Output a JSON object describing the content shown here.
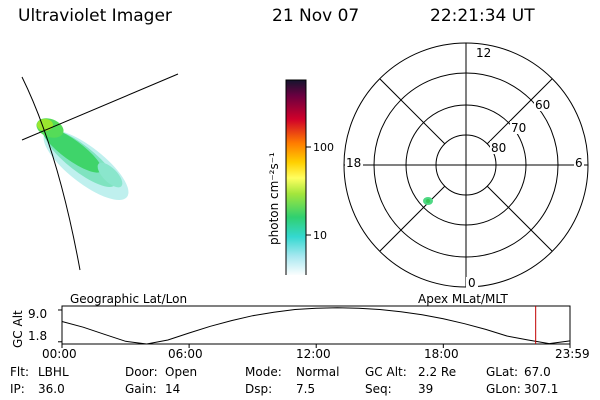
{
  "header": {
    "instrument": "Ultraviolet Imager",
    "date": "21 Nov 07",
    "time": "22:21:34 UT"
  },
  "colorbar": {
    "label": "photon cm⁻²s⁻¹",
    "ticks": [
      "100",
      "10"
    ]
  },
  "polar_plot": {
    "mlt_labels": {
      "top": "12",
      "bottom": "0",
      "left": "18",
      "right": "6"
    },
    "lat_labels": [
      "60",
      "70",
      "80"
    ]
  },
  "timeline": {
    "left_title": "Geographic Lat/Lon",
    "right_title": "Apex MLat/MLT",
    "y_axis_label": "GC Alt",
    "y_ticks": [
      "9.0",
      "1.8"
    ],
    "x_ticks": [
      "00:00",
      "06:00",
      "12:00",
      "18:00",
      "23:59"
    ]
  },
  "footer": {
    "rows": [
      [
        {
          "key": "Flt:",
          "value": "LBHL"
        },
        {
          "key": "Door:",
          "value": "Open"
        },
        {
          "key": "Mode:",
          "value": "Normal"
        },
        {
          "key": "GC Alt:",
          "value": "2.2 Re"
        },
        {
          "key": "GLat:",
          "value": "67.0"
        }
      ],
      [
        {
          "key": "IP:",
          "value": "36.0"
        },
        {
          "key": "Gain:",
          "value": "14"
        },
        {
          "key": "Dsp:",
          "value": "7.5"
        },
        {
          "key": "Seq:",
          "value": "39"
        },
        {
          "key": "GLon:",
          "value": "307.1"
        }
      ]
    ]
  },
  "chart_data": {
    "type": "line",
    "x_range_hours": [
      0,
      23.98
    ],
    "y_ticks_values": [
      1.8,
      9.0
    ],
    "ylim": [
      1.3,
      9.9
    ],
    "x": [
      0,
      1,
      2,
      3,
      4,
      5,
      6,
      7,
      8,
      9,
      10,
      11,
      12,
      13,
      14,
      15,
      16,
      17,
      18,
      19,
      20,
      21,
      22,
      23,
      24
    ],
    "series": [
      {
        "values": [
          6.4,
          5.1,
          3.5,
          1.9,
          1.3,
          2.2,
          3.8,
          5.3,
          6.6,
          7.7,
          8.5,
          9.1,
          9.4,
          9.5,
          9.4,
          9.1,
          8.6,
          7.9,
          7.0,
          5.9,
          4.6,
          3.1,
          2.2,
          1.4,
          2.0
        ]
      }
    ],
    "current_time_hours": 22.36,
    "marker_color": "#c00000"
  }
}
